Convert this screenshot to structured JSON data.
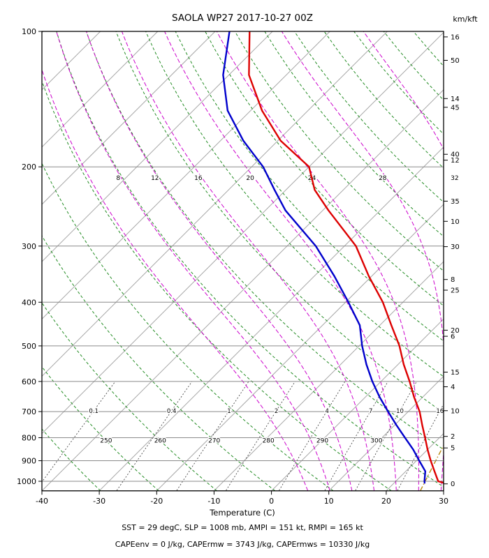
{
  "title": "SAOLA WP27 2017-10-27 00Z",
  "axes": {
    "temp_label": "Temperature (C)",
    "right_axis_header": "km/kft",
    "pressure_ticks_hPa": [
      100,
      200,
      300,
      400,
      500,
      600,
      700,
      800,
      900,
      1000
    ],
    "temp_ticks_C": [
      -40,
      -30,
      -20,
      -10,
      0,
      10,
      20,
      30
    ],
    "right_axis_km": [
      0,
      2,
      4,
      6,
      8,
      10,
      12,
      14,
      16
    ],
    "right_axis_kft": [
      5,
      10,
      15,
      20,
      25,
      30,
      35,
      40,
      45,
      50
    ]
  },
  "footer": {
    "line1": "SST = 29 degC, SLP = 1008 mb, AMPI = 151 kt, RMPI = 165 kt",
    "line2": "CAPEenv = 0 J/kg, CAPErmw = 3743 J/kg, CAPErmws = 10330 J/kg"
  },
  "chart_data": {
    "type": "line",
    "subtype": "skew-t-log-p-sounding",
    "title": "SAOLA WP27 2017-10-27 00Z",
    "xlabel": "Temperature (C)",
    "x_range_C": [
      -40,
      30
    ],
    "pressure_range_hPa": [
      100,
      1050
    ],
    "skew_deg": 45,
    "series": [
      {
        "name": "temperature",
        "color": "#dd0000",
        "pressure_hPa": [
          1008,
          1000,
          950,
          900,
          850,
          800,
          750,
          700,
          650,
          600,
          550,
          500,
          450,
          400,
          350,
          300,
          250,
          225,
          200,
          175,
          150,
          125,
          100
        ],
        "values_C": [
          28.6,
          27.4,
          25.0,
          22.5,
          20.0,
          17.5,
          14.8,
          12.0,
          8.5,
          5.0,
          1.0,
          -3.0,
          -8.0,
          -13.5,
          -20.5,
          -28.0,
          -39.0,
          -45.0,
          -50.0,
          -59.5,
          -68.0,
          -76.5,
          -84.0
        ]
      },
      {
        "name": "dewpoint",
        "color": "#0000cc",
        "pressure_hPa": [
          1008,
          1000,
          950,
          900,
          850,
          800,
          750,
          700,
          650,
          600,
          550,
          500,
          450,
          400,
          350,
          300,
          250,
          225,
          200,
          175,
          150,
          125,
          100
        ],
        "values_C": [
          25.3,
          25.0,
          23.4,
          20.5,
          17.5,
          14.0,
          10.3,
          6.5,
          2.5,
          -1.5,
          -5.5,
          -9.5,
          -13.5,
          -19.5,
          -26.5,
          -35.0,
          -46.5,
          -52.0,
          -58.0,
          -66.0,
          -74.0,
          -81.0,
          -87.5
        ]
      }
    ],
    "isotherms_C": {
      "min": -120,
      "max": 30,
      "step": 10
    },
    "dry_adiabats_theta_K": {
      "min": 230,
      "max": 430,
      "step": 10,
      "labeled": [
        250,
        260,
        270,
        280,
        290,
        300
      ]
    },
    "moist_adiabats_start_C": {
      "values": [
        4,
        8,
        12,
        16,
        20,
        24,
        28,
        32,
        36
      ],
      "labeled": [
        8,
        12,
        16,
        20,
        24,
        28,
        32
      ]
    },
    "mixing_ratio_lines_g_kg": [
      0.1,
      0.4,
      1,
      2,
      4,
      7,
      10,
      16
    ],
    "parcel_mixing_ratio_g_kg": 20.5,
    "legend": "none",
    "grid": "pressure-lines-on",
    "colors": {
      "temperature": "#dd0000",
      "dewpoint": "#0000cc",
      "isotherm": "#a6a6a6",
      "pressure_line": "#8a8a8a",
      "dry_adiabat": "#228b22",
      "moist_adiabat": "#cc00cc",
      "mixing_ratio": "#333333",
      "parcel_line": "#b8860b",
      "frame": "#000000"
    }
  }
}
